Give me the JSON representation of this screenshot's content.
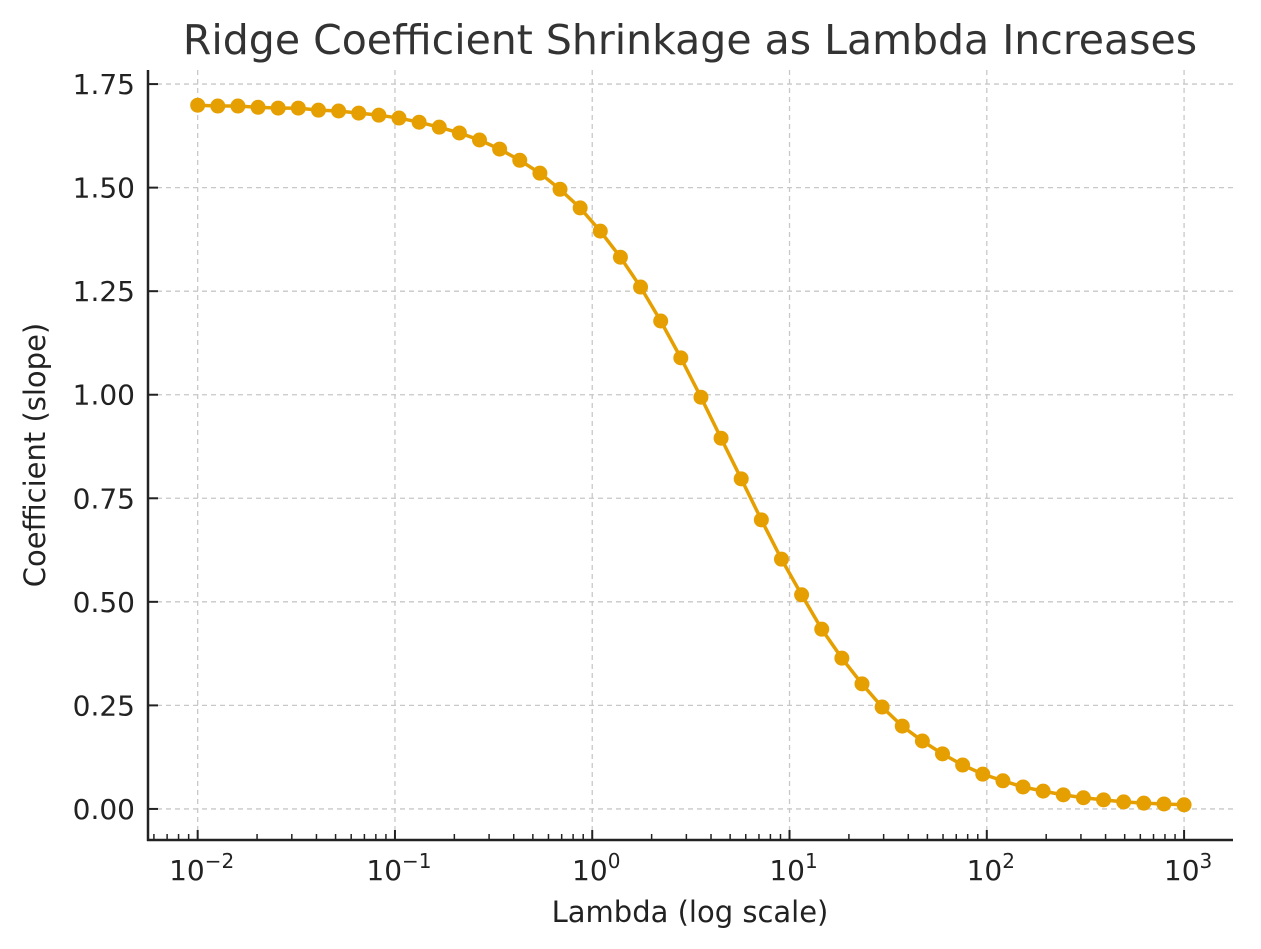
{
  "chart_data": {
    "type": "line",
    "title": "Ridge Coefficient Shrinkage as Lambda Increases",
    "xlabel": "Lambda (log scale)",
    "ylabel": "Coefficient (slope)",
    "x_scale": "log",
    "xlim": [
      0.0056,
      1770
    ],
    "ylim": [
      -0.075,
      1.784
    ],
    "grid": true,
    "color": "#E69F00",
    "marker": "circle",
    "x_ticks": [
      0.01,
      0.1,
      1,
      10,
      100,
      1000
    ],
    "x_tick_labels": [
      [
        "10",
        "−2"
      ],
      [
        "10",
        "−1"
      ],
      [
        "10",
        "0"
      ],
      [
        "10",
        "1"
      ],
      [
        "10",
        "2"
      ],
      [
        "10",
        "3"
      ]
    ],
    "y_ticks": [
      0,
      0.25,
      0.5,
      0.75,
      1.0,
      1.25,
      1.5,
      1.75
    ],
    "y_tick_labels": [
      "0.00",
      "0.25",
      "0.50",
      "0.75",
      "1.00",
      "1.25",
      "1.50",
      "1.75"
    ],
    "x_range_logspace": {
      "start": 0.01,
      "stop": 1000,
      "num": 50
    },
    "values": [
      1.699,
      1.697,
      1.697,
      1.694,
      1.692,
      1.692,
      1.687,
      1.685,
      1.68,
      1.675,
      1.668,
      1.658,
      1.646,
      1.632,
      1.615,
      1.593,
      1.566,
      1.535,
      1.496,
      1.451,
      1.395,
      1.332,
      1.26,
      1.178,
      1.089,
      0.994,
      0.895,
      0.797,
      0.698,
      0.603,
      0.517,
      0.434,
      0.364,
      0.302,
      0.246,
      0.2,
      0.164,
      0.133,
      0.106,
      0.084,
      0.068,
      0.053,
      0.043,
      0.034,
      0.027,
      0.022,
      0.017,
      0.014,
      0.012,
      0.01
    ]
  }
}
